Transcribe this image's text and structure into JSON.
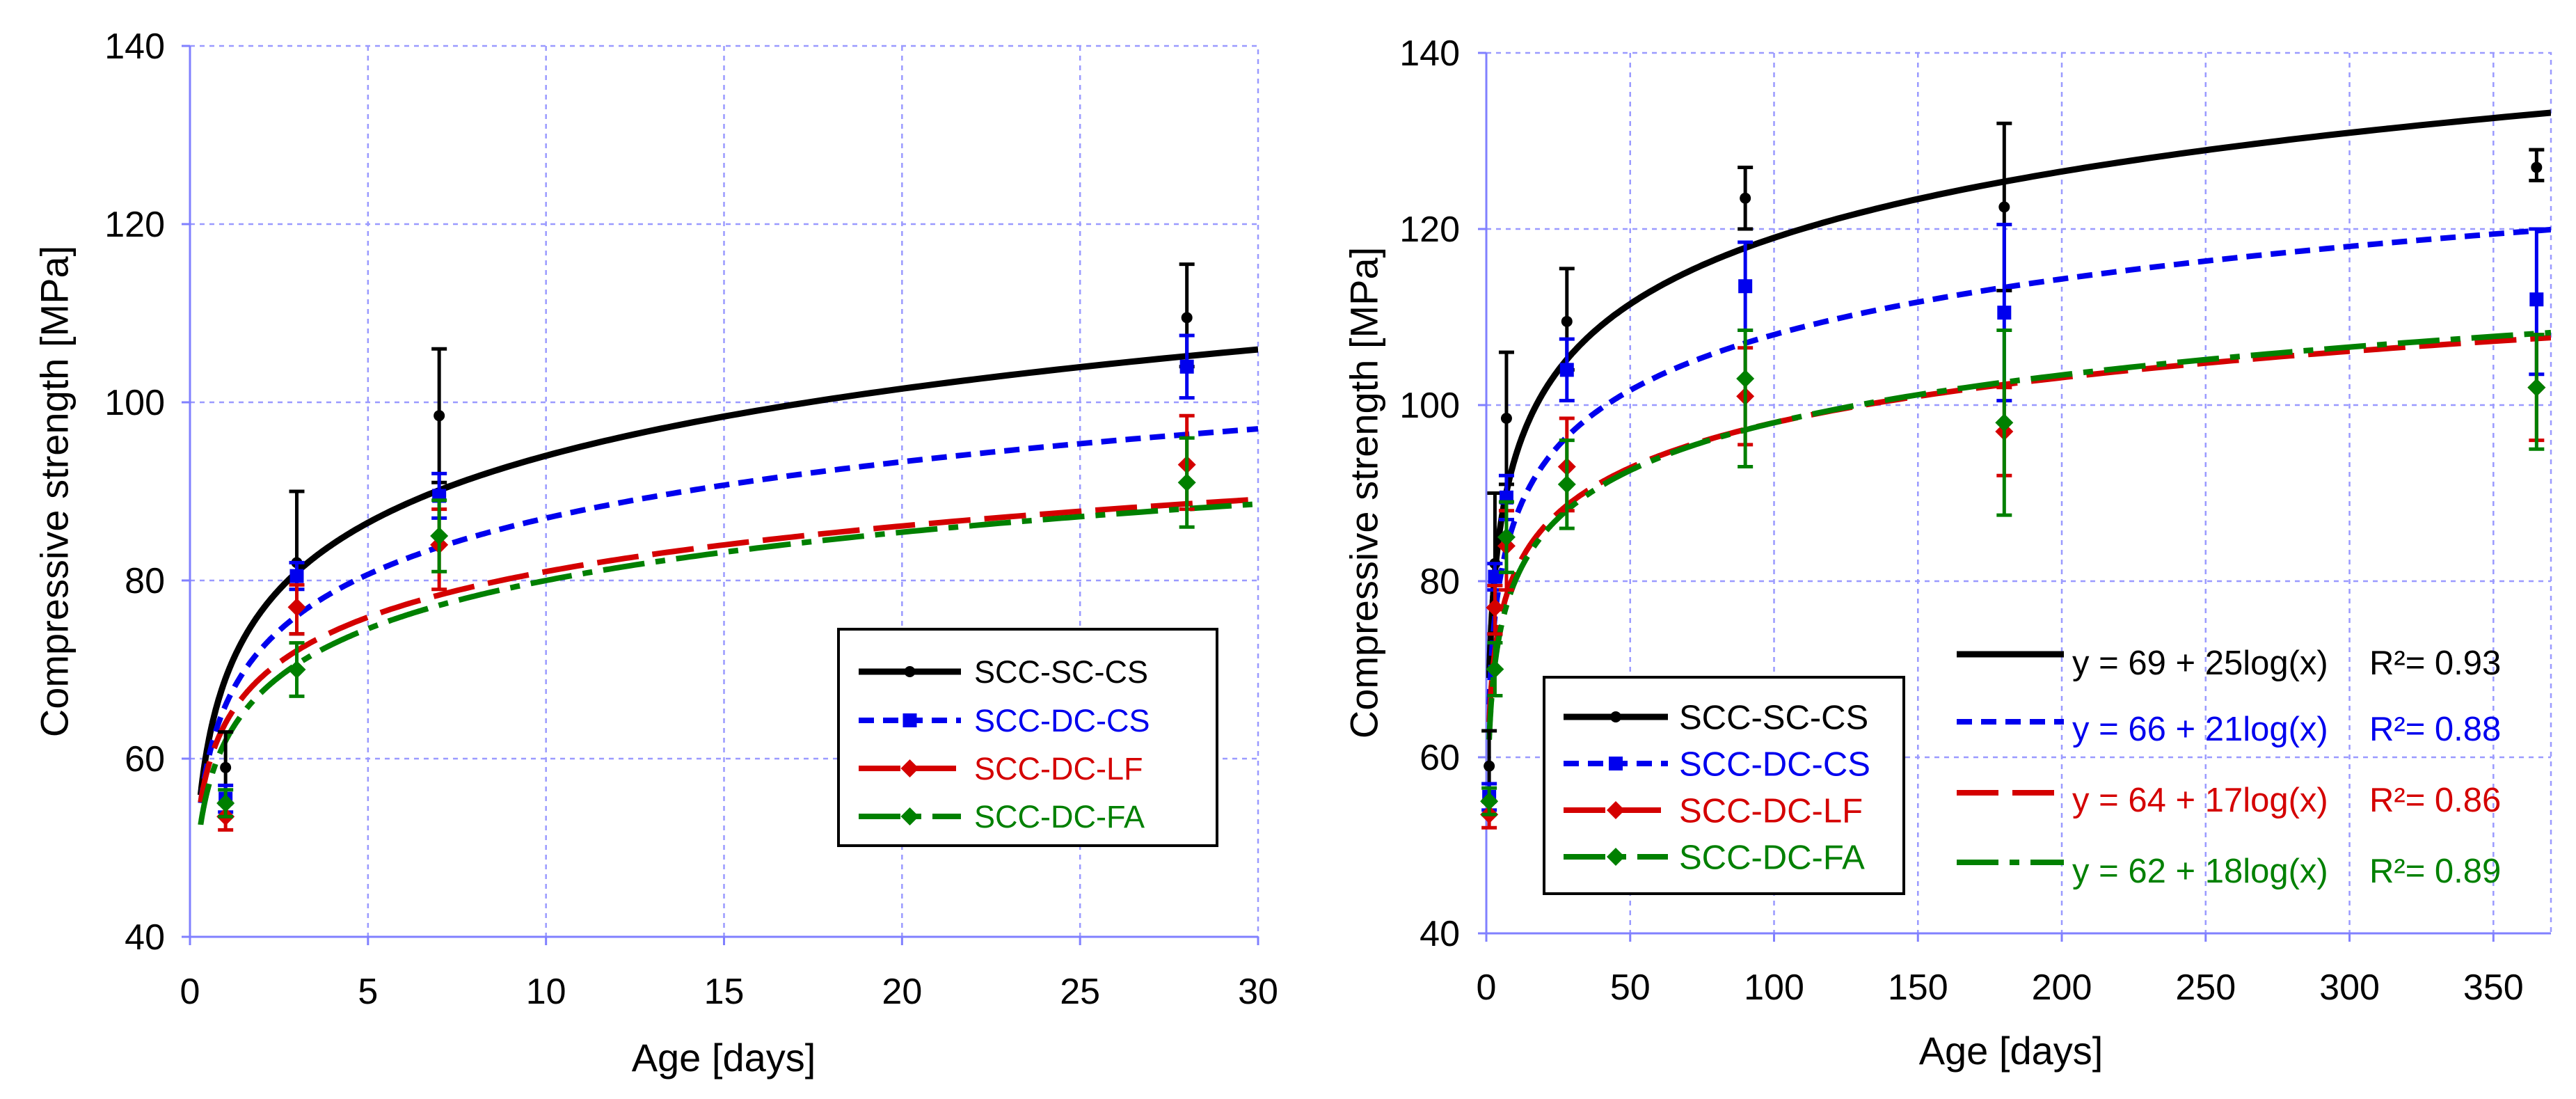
{
  "chart_data": [
    {
      "type": "scatter",
      "xlabel": "Age [days]",
      "ylabel": "Compressive strength [MPa]",
      "xlim": [
        0,
        30
      ],
      "ylim": [
        40,
        140
      ],
      "xticks": [
        0,
        5,
        10,
        15,
        20,
        25,
        30
      ],
      "yticks": [
        40,
        60,
        80,
        100,
        120,
        140
      ],
      "grid": true,
      "legend_position": "lower-right",
      "fit_range": [
        0.3,
        30
      ],
      "series": [
        {
          "name": "SCC-SC-CS",
          "color": "#000000",
          "fit": {
            "a": 69,
            "b": 25
          },
          "points": [
            {
              "x": 1,
              "y": 59,
              "lo": 55,
              "hi": 63
            },
            {
              "x": 3,
              "y": 82,
              "lo": 74,
              "hi": 90
            },
            {
              "x": 7,
              "y": 98.5,
              "lo": 91,
              "hi": 106
            },
            {
              "x": 28,
              "y": 109.5,
              "lo": 104,
              "hi": 115.5
            }
          ]
        },
        {
          "name": "SCC-DC-CS",
          "color": "#0000ee",
          "fit": {
            "a": 66,
            "b": 21
          },
          "points": [
            {
              "x": 1,
              "y": 55.5,
              "lo": 54,
              "hi": 57
            },
            {
              "x": 3,
              "y": 80.5,
              "lo": 79,
              "hi": 82
            },
            {
              "x": 7,
              "y": 89.5,
              "lo": 87,
              "hi": 92
            },
            {
              "x": 28,
              "y": 104,
              "lo": 100.5,
              "hi": 107.5
            }
          ]
        },
        {
          "name": "SCC-DC-LF",
          "color": "#d40000",
          "fit": {
            "a": 64,
            "b": 17
          },
          "points": [
            {
              "x": 1,
              "y": 53.5,
              "lo": 52,
              "hi": 55
            },
            {
              "x": 3,
              "y": 77,
              "lo": 74,
              "hi": 79.5
            },
            {
              "x": 7,
              "y": 84,
              "lo": 79,
              "hi": 88
            },
            {
              "x": 28,
              "y": 93,
              "lo": 88,
              "hi": 98.5
            }
          ]
        },
        {
          "name": "SCC-DC-FA",
          "color": "#008000",
          "fit": {
            "a": 62,
            "b": 18
          },
          "points": [
            {
              "x": 1,
              "y": 55,
              "lo": 53.5,
              "hi": 56.5
            },
            {
              "x": 3,
              "y": 70,
              "lo": 67,
              "hi": 73
            },
            {
              "x": 7,
              "y": 85,
              "lo": 81,
              "hi": 89
            },
            {
              "x": 28,
              "y": 91,
              "lo": 86,
              "hi": 96
            }
          ]
        }
      ]
    },
    {
      "type": "scatter",
      "xlabel": "Age [days]",
      "ylabel": "Compressive strength [MPa]",
      "xlim": [
        0,
        370
      ],
      "ylim": [
        40,
        140
      ],
      "xticks": [
        0,
        50,
        100,
        150,
        200,
        250,
        300,
        350
      ],
      "yticks": [
        40,
        60,
        80,
        100,
        120,
        140
      ],
      "grid": true,
      "legend_position": "lower-left",
      "equation_position": "lower-right",
      "fit_range": [
        1,
        370
      ],
      "series": [
        {
          "name": "SCC-SC-CS",
          "color": "#000000",
          "fit": {
            "a": 69,
            "b": 25
          },
          "equation": "y = 69 + 25log(x)",
          "r2_text": "R²= 0.93",
          "points": [
            {
              "x": 1,
              "y": 59,
              "lo": 55,
              "hi": 63
            },
            {
              "x": 3,
              "y": 82,
              "lo": 74,
              "hi": 90
            },
            {
              "x": 7,
              "y": 98.5,
              "lo": 91,
              "hi": 106
            },
            {
              "x": 28,
              "y": 109.5,
              "lo": 104,
              "hi": 115.5
            },
            {
              "x": 90,
              "y": 123.5,
              "lo": 120,
              "hi": 127
            },
            {
              "x": 180,
              "y": 122.5,
              "lo": 113,
              "hi": 132
            },
            {
              "x": 365,
              "y": 127,
              "lo": 125.5,
              "hi": 129
            }
          ]
        },
        {
          "name": "SCC-DC-CS",
          "color": "#0000ee",
          "fit": {
            "a": 66,
            "b": 21
          },
          "equation": "y = 66 + 21log(x)",
          "r2_text": "R²= 0.88",
          "points": [
            {
              "x": 1,
              "y": 55.5,
              "lo": 54,
              "hi": 57
            },
            {
              "x": 3,
              "y": 80.5,
              "lo": 79,
              "hi": 82
            },
            {
              "x": 7,
              "y": 89.5,
              "lo": 87,
              "hi": 92
            },
            {
              "x": 28,
              "y": 104,
              "lo": 100.5,
              "hi": 107.5
            },
            {
              "x": 90,
              "y": 113.5,
              "lo": 108.5,
              "hi": 118.5
            },
            {
              "x": 180,
              "y": 110.5,
              "lo": 100.5,
              "hi": 120.5
            },
            {
              "x": 365,
              "y": 112,
              "lo": 103.5,
              "hi": 120
            }
          ]
        },
        {
          "name": "SCC-DC-LF",
          "color": "#d40000",
          "fit": {
            "a": 64,
            "b": 17
          },
          "equation": "y = 64 + 17log(x)",
          "r2_text": "R²= 0.86",
          "points": [
            {
              "x": 1,
              "y": 53.5,
              "lo": 52,
              "hi": 55
            },
            {
              "x": 3,
              "y": 77,
              "lo": 74,
              "hi": 79.5
            },
            {
              "x": 7,
              "y": 84,
              "lo": 79,
              "hi": 88
            },
            {
              "x": 28,
              "y": 93,
              "lo": 88,
              "hi": 98.5
            },
            {
              "x": 90,
              "y": 101,
              "lo": 95.5,
              "hi": 106.5
            },
            {
              "x": 180,
              "y": 97,
              "lo": 92,
              "hi": 102
            },
            {
              "x": 365,
              "y": 102,
              "lo": 96,
              "hi": 108
            }
          ]
        },
        {
          "name": "SCC-DC-FA",
          "color": "#008000",
          "fit": {
            "a": 62,
            "b": 18
          },
          "equation": "y = 62 + 18log(x)",
          "r2_text": "R²= 0.89",
          "points": [
            {
              "x": 1,
              "y": 55,
              "lo": 53.5,
              "hi": 56.5
            },
            {
              "x": 3,
              "y": 70,
              "lo": 67,
              "hi": 73
            },
            {
              "x": 7,
              "y": 85,
              "lo": 81,
              "hi": 89
            },
            {
              "x": 28,
              "y": 91,
              "lo": 86,
              "hi": 96
            },
            {
              "x": 90,
              "y": 103,
              "lo": 93,
              "hi": 108.5
            },
            {
              "x": 180,
              "y": 98,
              "lo": 87.5,
              "hi": 108.5
            },
            {
              "x": 365,
              "y": 102,
              "lo": 95,
              "hi": 108
            }
          ]
        }
      ]
    }
  ]
}
